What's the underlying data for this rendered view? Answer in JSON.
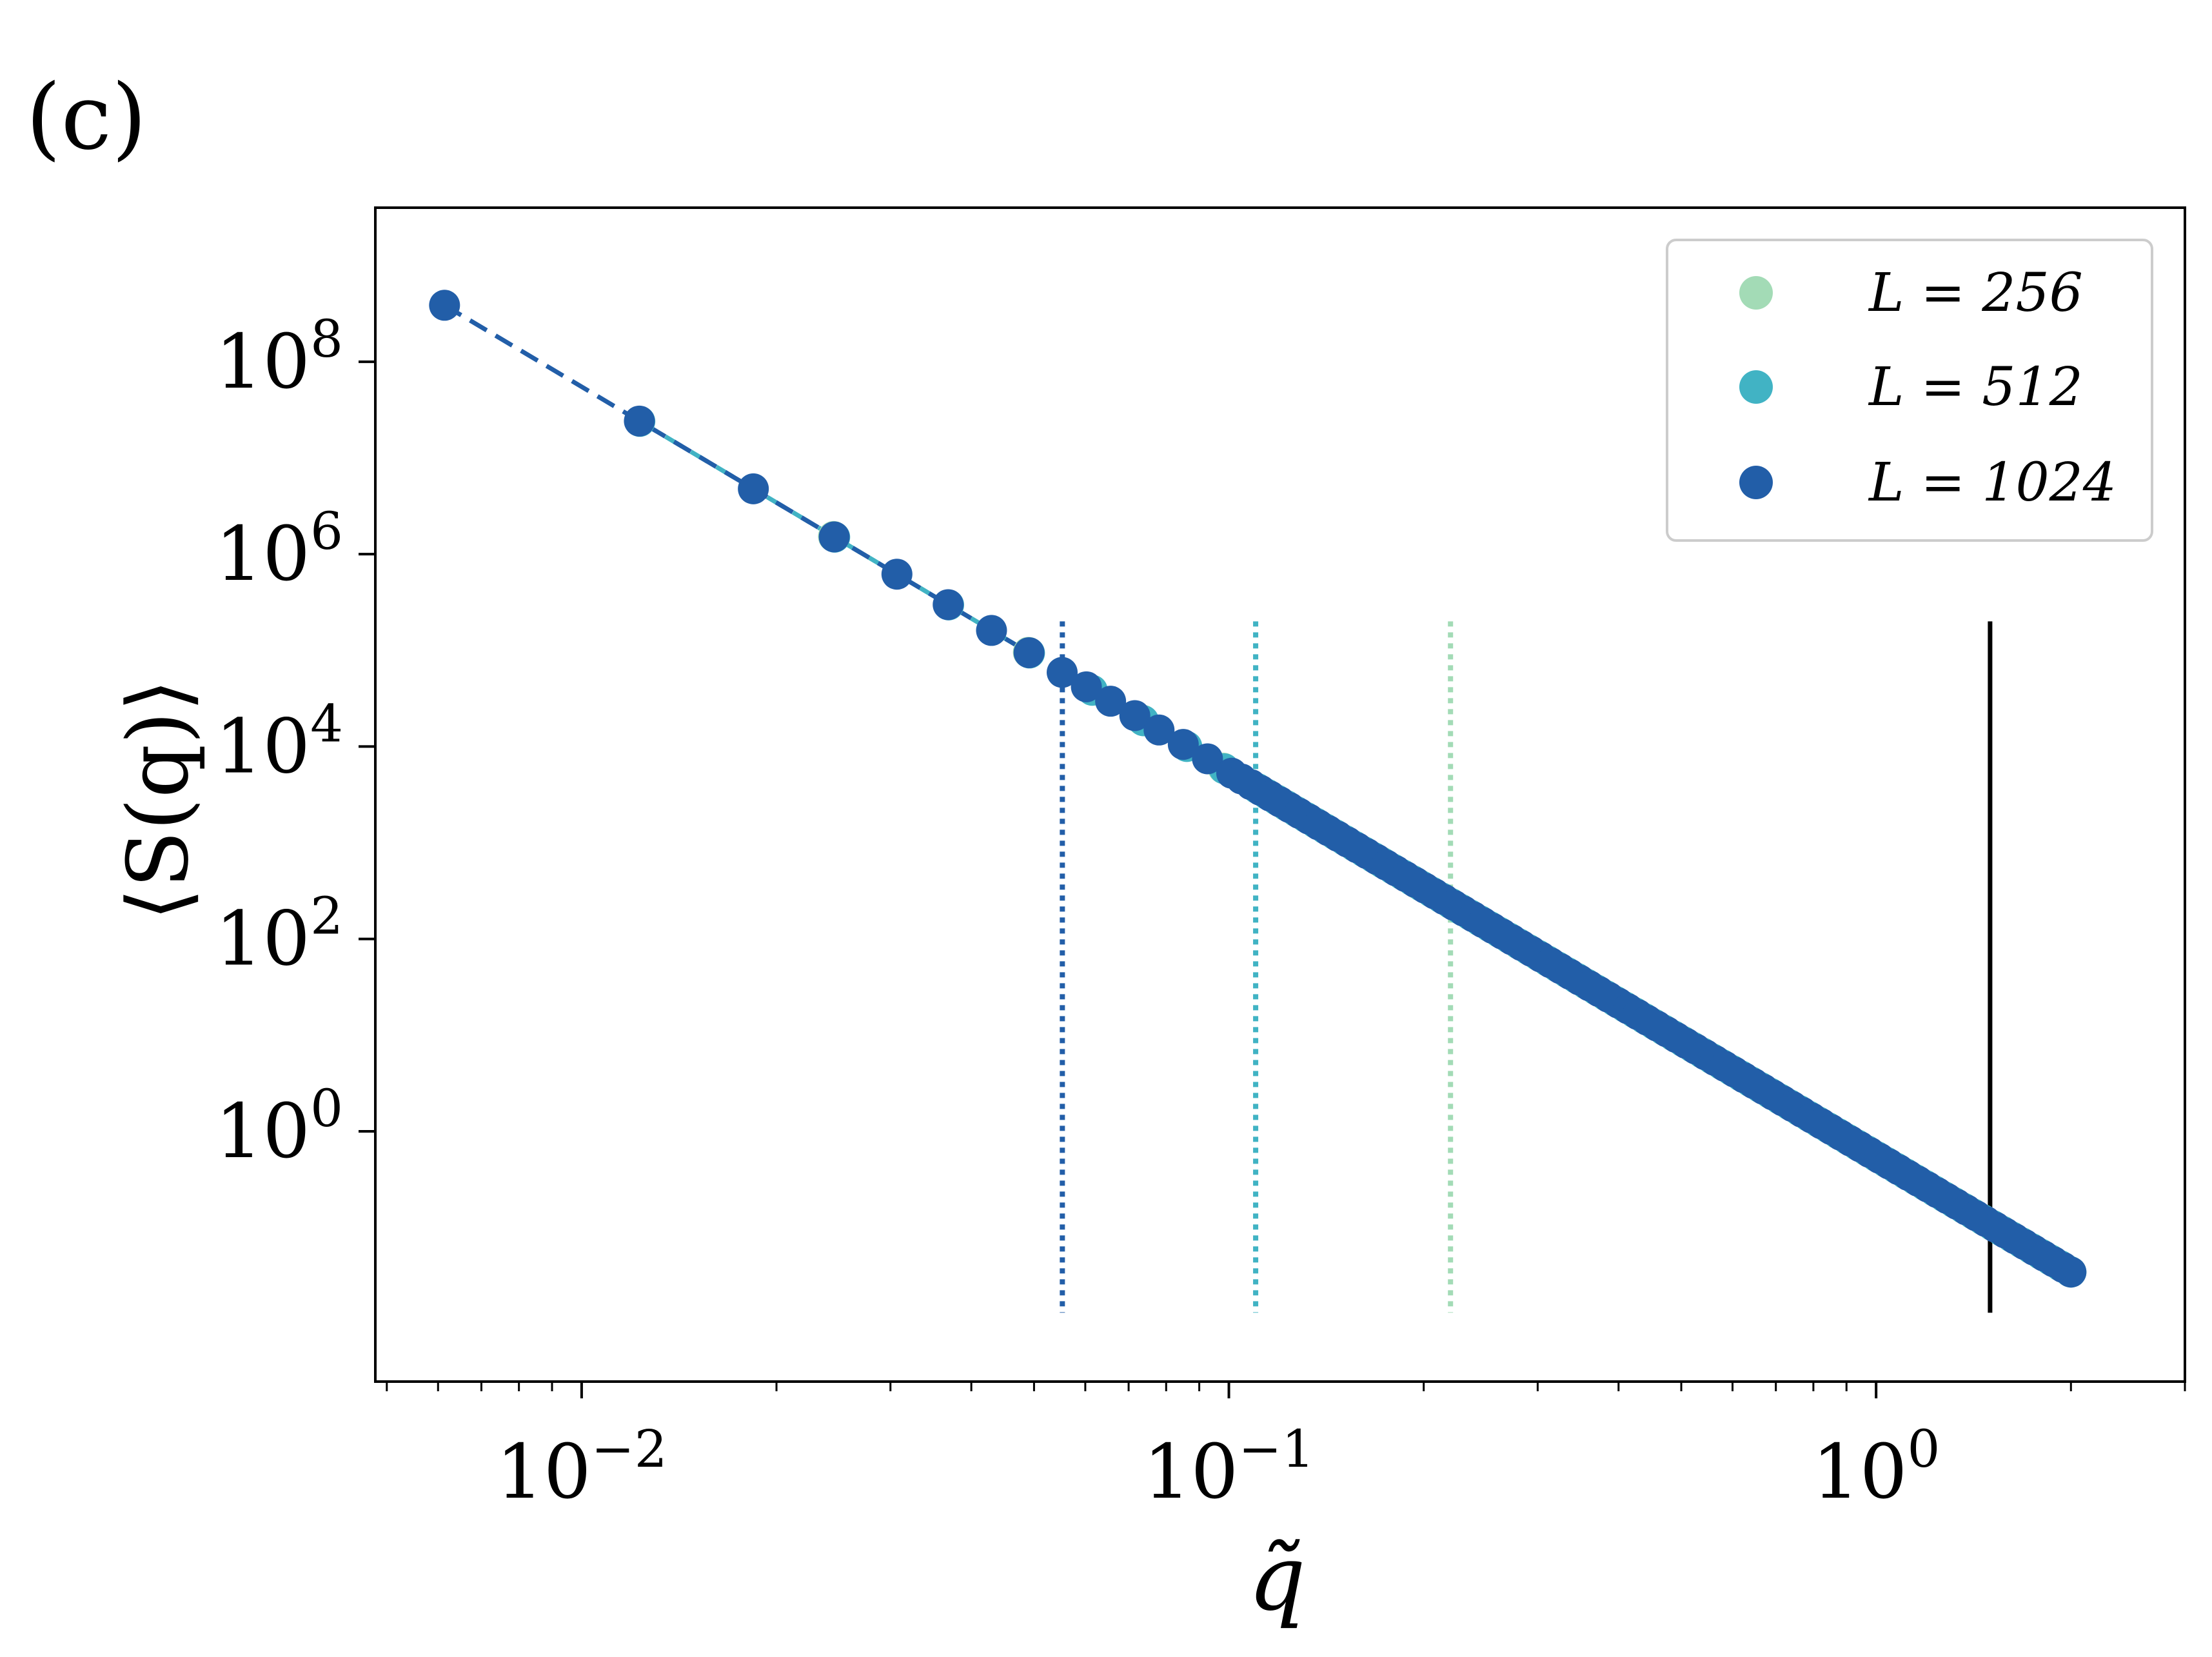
{
  "panel_label": "(c)",
  "colors": {
    "L256": "#a3dbb6",
    "L512": "#41b3c4",
    "L1024": "#225ea8",
    "marker_line": "#000000"
  },
  "chart_data": {
    "type": "scatter",
    "title": "",
    "xlabel": "q̃",
    "ylabel": "⟨S(q)⟩",
    "xscale": "log",
    "yscale": "log",
    "xlim": [
      0.0048,
      3.0
    ],
    "ylim": [
      0.0025,
      4000000000.0
    ],
    "x_ticks": [
      {
        "value": 0.01,
        "base": "10",
        "exp": "−2"
      },
      {
        "value": 0.1,
        "base": "10",
        "exp": "−1"
      },
      {
        "value": 1,
        "base": "10",
        "exp": "0"
      }
    ],
    "y_ticks": [
      {
        "value": 1,
        "base": "10",
        "exp": "0"
      },
      {
        "value": 100,
        "base": "10",
        "exp": "2"
      },
      {
        "value": 10000,
        "base": "10",
        "exp": "4"
      },
      {
        "value": 1000000,
        "base": "10",
        "exp": "6"
      },
      {
        "value": 100000000,
        "base": "10",
        "exp": "8"
      }
    ],
    "grid": false,
    "legend": {
      "position": "top-right",
      "entries": [
        {
          "label": "L = 256",
          "color": "#a3dbb6"
        },
        {
          "label": "L = 512",
          "color": "#41b3c4"
        },
        {
          "label": "L = 1024",
          "color": "#225ea8"
        }
      ]
    },
    "series": [
      {
        "name": "L = 256",
        "color": "#a3dbb6",
        "L": 256,
        "q_min": 0.0245,
        "q_max": 2.0,
        "fit_y_at_q1": 0.55,
        "slope": -4
      },
      {
        "name": "L = 512",
        "color": "#41b3c4",
        "L": 512,
        "q_min": 0.0123,
        "q_max": 2.0,
        "fit_y_at_q1": 0.55,
        "slope": -4
      },
      {
        "name": "L = 1024",
        "color": "#225ea8",
        "L": 1024,
        "q_min": 0.00614,
        "q_max": 2.0,
        "fit_y_at_q1": 0.55,
        "slope": -4
      }
    ],
    "fit_lines": [
      {
        "series": "L = 256",
        "style": "dashed",
        "x_range": [
          0.0245,
          0.05
        ]
      },
      {
        "series": "L = 512",
        "style": "dashed",
        "x_range": [
          0.0123,
          0.05
        ]
      },
      {
        "series": "L = 1024",
        "style": "dashed",
        "x_range": [
          0.00614,
          0.05
        ]
      }
    ],
    "vertical_lines": [
      {
        "x": 0.0553,
        "style": "dotted",
        "color": "#225ea8",
        "y_range": [
          0.013,
          200000
        ]
      },
      {
        "x": 0.11,
        "style": "dotted",
        "color": "#41b3c4",
        "y_range": [
          0.013,
          200000
        ]
      },
      {
        "x": 0.22,
        "style": "dotted",
        "color": "#a3dbb6",
        "y_range": [
          0.013,
          200000
        ]
      },
      {
        "x": 1.5,
        "style": "solid",
        "color": "#000000",
        "y_range": [
          0.013,
          200000
        ]
      }
    ]
  }
}
